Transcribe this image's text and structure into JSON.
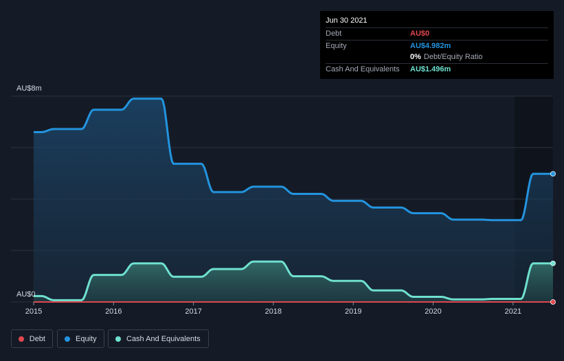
{
  "tooltip": {
    "date": "Jun 30 2021",
    "debt_label": "Debt",
    "debt_value": "AU$0",
    "equity_label": "Equity",
    "equity_value": "AU$4.982m",
    "ratio_value": "0%",
    "ratio_label": "Debt/Equity Ratio",
    "cash_label": "Cash And Equivalents",
    "cash_value": "AU$1.496m"
  },
  "legend": {
    "debt": "Debt",
    "equity": "Equity",
    "cash": "Cash And Equivalents"
  },
  "colors": {
    "debt": "#e0474f",
    "equity": "#2394df",
    "cash": "#6fe1cf",
    "background": "#151b26"
  },
  "chart_data": {
    "type": "area",
    "y_axis_labels": [
      "AU$8m",
      "AU$0"
    ],
    "ylim": [
      0,
      8
    ],
    "xlim": [
      2015,
      2021.5
    ],
    "x_ticks": [
      "2015",
      "2016",
      "2017",
      "2018",
      "2019",
      "2020",
      "2021"
    ],
    "series": [
      {
        "name": "Equity",
        "x": [
          2015,
          2015.25,
          2015.5,
          2015.75,
          2016,
          2016.25,
          2016.5,
          2016.75,
          2017,
          2017.25,
          2017.5,
          2017.75,
          2018,
          2018.25,
          2018.5,
          2018.75,
          2019,
          2019.25,
          2019.5,
          2019.75,
          2020,
          2020.25,
          2020.5,
          2020.75,
          2021,
          2021.25,
          2021.5
        ],
        "values": [
          6.6,
          6.72,
          6.72,
          7.47,
          7.47,
          7.9,
          7.9,
          5.37,
          5.37,
          4.27,
          4.27,
          4.48,
          4.48,
          4.2,
          4.2,
          3.93,
          3.93,
          3.67,
          3.67,
          3.45,
          3.45,
          3.2,
          3.2,
          3.18,
          3.18,
          4.98,
          4.98
        ]
      },
      {
        "name": "Cash And Equivalents",
        "x": [
          2015,
          2015.25,
          2015.5,
          2015.75,
          2016,
          2016.25,
          2016.5,
          2016.75,
          2017,
          2017.25,
          2017.5,
          2017.75,
          2018,
          2018.25,
          2018.5,
          2018.75,
          2019,
          2019.25,
          2019.5,
          2019.75,
          2020,
          2020.25,
          2020.5,
          2020.75,
          2021,
          2021.25,
          2021.5
        ],
        "values": [
          0.23,
          0.07,
          0.07,
          1.05,
          1.05,
          1.5,
          1.5,
          0.98,
          0.98,
          1.28,
          1.28,
          1.57,
          1.57,
          1.0,
          1.0,
          0.82,
          0.82,
          0.45,
          0.45,
          0.2,
          0.2,
          0.1,
          0.1,
          0.12,
          0.12,
          1.5,
          1.5
        ]
      },
      {
        "name": "Debt",
        "x": [
          2015,
          2015.25,
          2015.5,
          2015.75,
          2016,
          2016.25,
          2016.5,
          2016.75,
          2017,
          2017.25,
          2017.5,
          2017.75,
          2018,
          2018.25,
          2018.5,
          2018.75,
          2019,
          2019.25,
          2019.5,
          2019.75,
          2020,
          2020.25,
          2020.5,
          2020.75,
          2021,
          2021.25,
          2021.5
        ],
        "values": [
          0,
          0,
          0,
          0,
          0,
          0,
          0,
          0,
          0,
          0,
          0,
          0,
          0,
          0,
          0,
          0,
          0,
          0,
          0,
          0,
          0,
          0,
          0,
          0,
          0,
          0,
          0
        ]
      }
    ]
  }
}
